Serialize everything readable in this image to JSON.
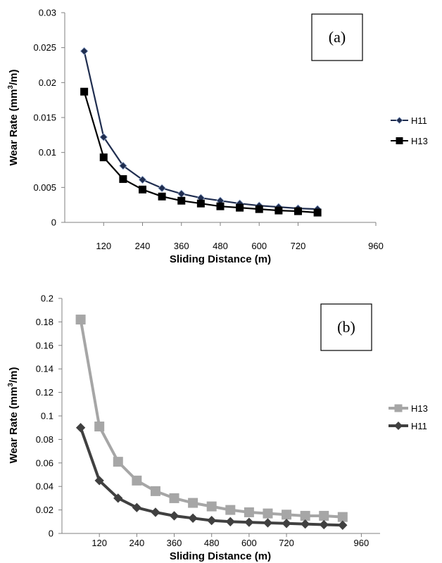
{
  "chart_data": [
    {
      "type": "line",
      "panel_label": "(a)",
      "xlabel": "Sliding Distance (m)",
      "ylabel_main": "Wear Rate (mm",
      "ylabel_sup": "3",
      "ylabel_tail": "/m)",
      "xlim": [
        0,
        960
      ],
      "ylim": [
        0,
        0.03
      ],
      "x_ticks": [
        120,
        240,
        360,
        480,
        600,
        720,
        960
      ],
      "y_ticks": [
        {
          "value": 0,
          "label": "0"
        },
        {
          "value": 0.005,
          "label": "0.005"
        },
        {
          "value": 0.01,
          "label": "0.01"
        },
        {
          "value": 0.015,
          "label": "0.015"
        },
        {
          "value": 0.02,
          "label": "0.02"
        },
        {
          "value": 0.025,
          "label": "0.025"
        },
        {
          "value": 0.03,
          "label": "0.03"
        }
      ],
      "grid": false,
      "legend_position": "right",
      "x": [
        60,
        120,
        180,
        240,
        300,
        360,
        420,
        480,
        540,
        600,
        660,
        720,
        780
      ],
      "series": [
        {
          "name": "H11",
          "color": "#1f2d4f",
          "marker": "diamond",
          "values": [
            0.0245,
            0.0122,
            0.0081,
            0.0061,
            0.0049,
            0.0041,
            0.0035,
            0.0031,
            0.0027,
            0.0024,
            0.0022,
            0.002,
            0.0019
          ]
        },
        {
          "name": "H13",
          "color": "#000000",
          "marker": "square",
          "values": [
            0.0187,
            0.0093,
            0.0062,
            0.0047,
            0.0037,
            0.0031,
            0.0027,
            0.0023,
            0.0021,
            0.0019,
            0.0017,
            0.0016,
            0.0014
          ]
        }
      ]
    },
    {
      "type": "line",
      "panel_label": "(b)",
      "xlabel": "Sliding Distance (m)",
      "ylabel_main": "Wear Rate (mm",
      "ylabel_sup": "3",
      "ylabel_tail": "/m)",
      "xlim": [
        0,
        1020
      ],
      "ylim": [
        0,
        0.2
      ],
      "x_ticks": [
        120,
        240,
        360,
        480,
        600,
        720,
        960
      ],
      "y_ticks": [
        {
          "value": 0,
          "label": "0"
        },
        {
          "value": 0.02,
          "label": "0.02"
        },
        {
          "value": 0.04,
          "label": "0.04"
        },
        {
          "value": 0.06,
          "label": "0.06"
        },
        {
          "value": 0.08,
          "label": "0.08"
        },
        {
          "value": 0.1,
          "label": "0.1"
        },
        {
          "value": 0.12,
          "label": "0.12"
        },
        {
          "value": 0.14,
          "label": "0.14"
        },
        {
          "value": 0.16,
          "label": "0.16"
        },
        {
          "value": 0.18,
          "label": "0.18"
        },
        {
          "value": 0.2,
          "label": "0.2"
        }
      ],
      "grid": false,
      "legend_position": "right",
      "x": [
        60,
        120,
        180,
        240,
        300,
        360,
        420,
        480,
        540,
        600,
        660,
        720,
        780,
        840,
        900
      ],
      "series": [
        {
          "name": "H13",
          "color": "#a6a6a6",
          "marker": "square",
          "values": [
            0.182,
            0.091,
            0.061,
            0.045,
            0.036,
            0.03,
            0.026,
            0.023,
            0.02,
            0.018,
            0.017,
            0.016,
            0.015,
            0.015,
            0.014
          ]
        },
        {
          "name": "H11",
          "color": "#404040",
          "marker": "diamond",
          "values": [
            0.09,
            0.045,
            0.03,
            0.022,
            0.018,
            0.015,
            0.013,
            0.011,
            0.01,
            0.0095,
            0.009,
            0.0085,
            0.008,
            0.0075,
            0.007
          ]
        }
      ]
    }
  ]
}
